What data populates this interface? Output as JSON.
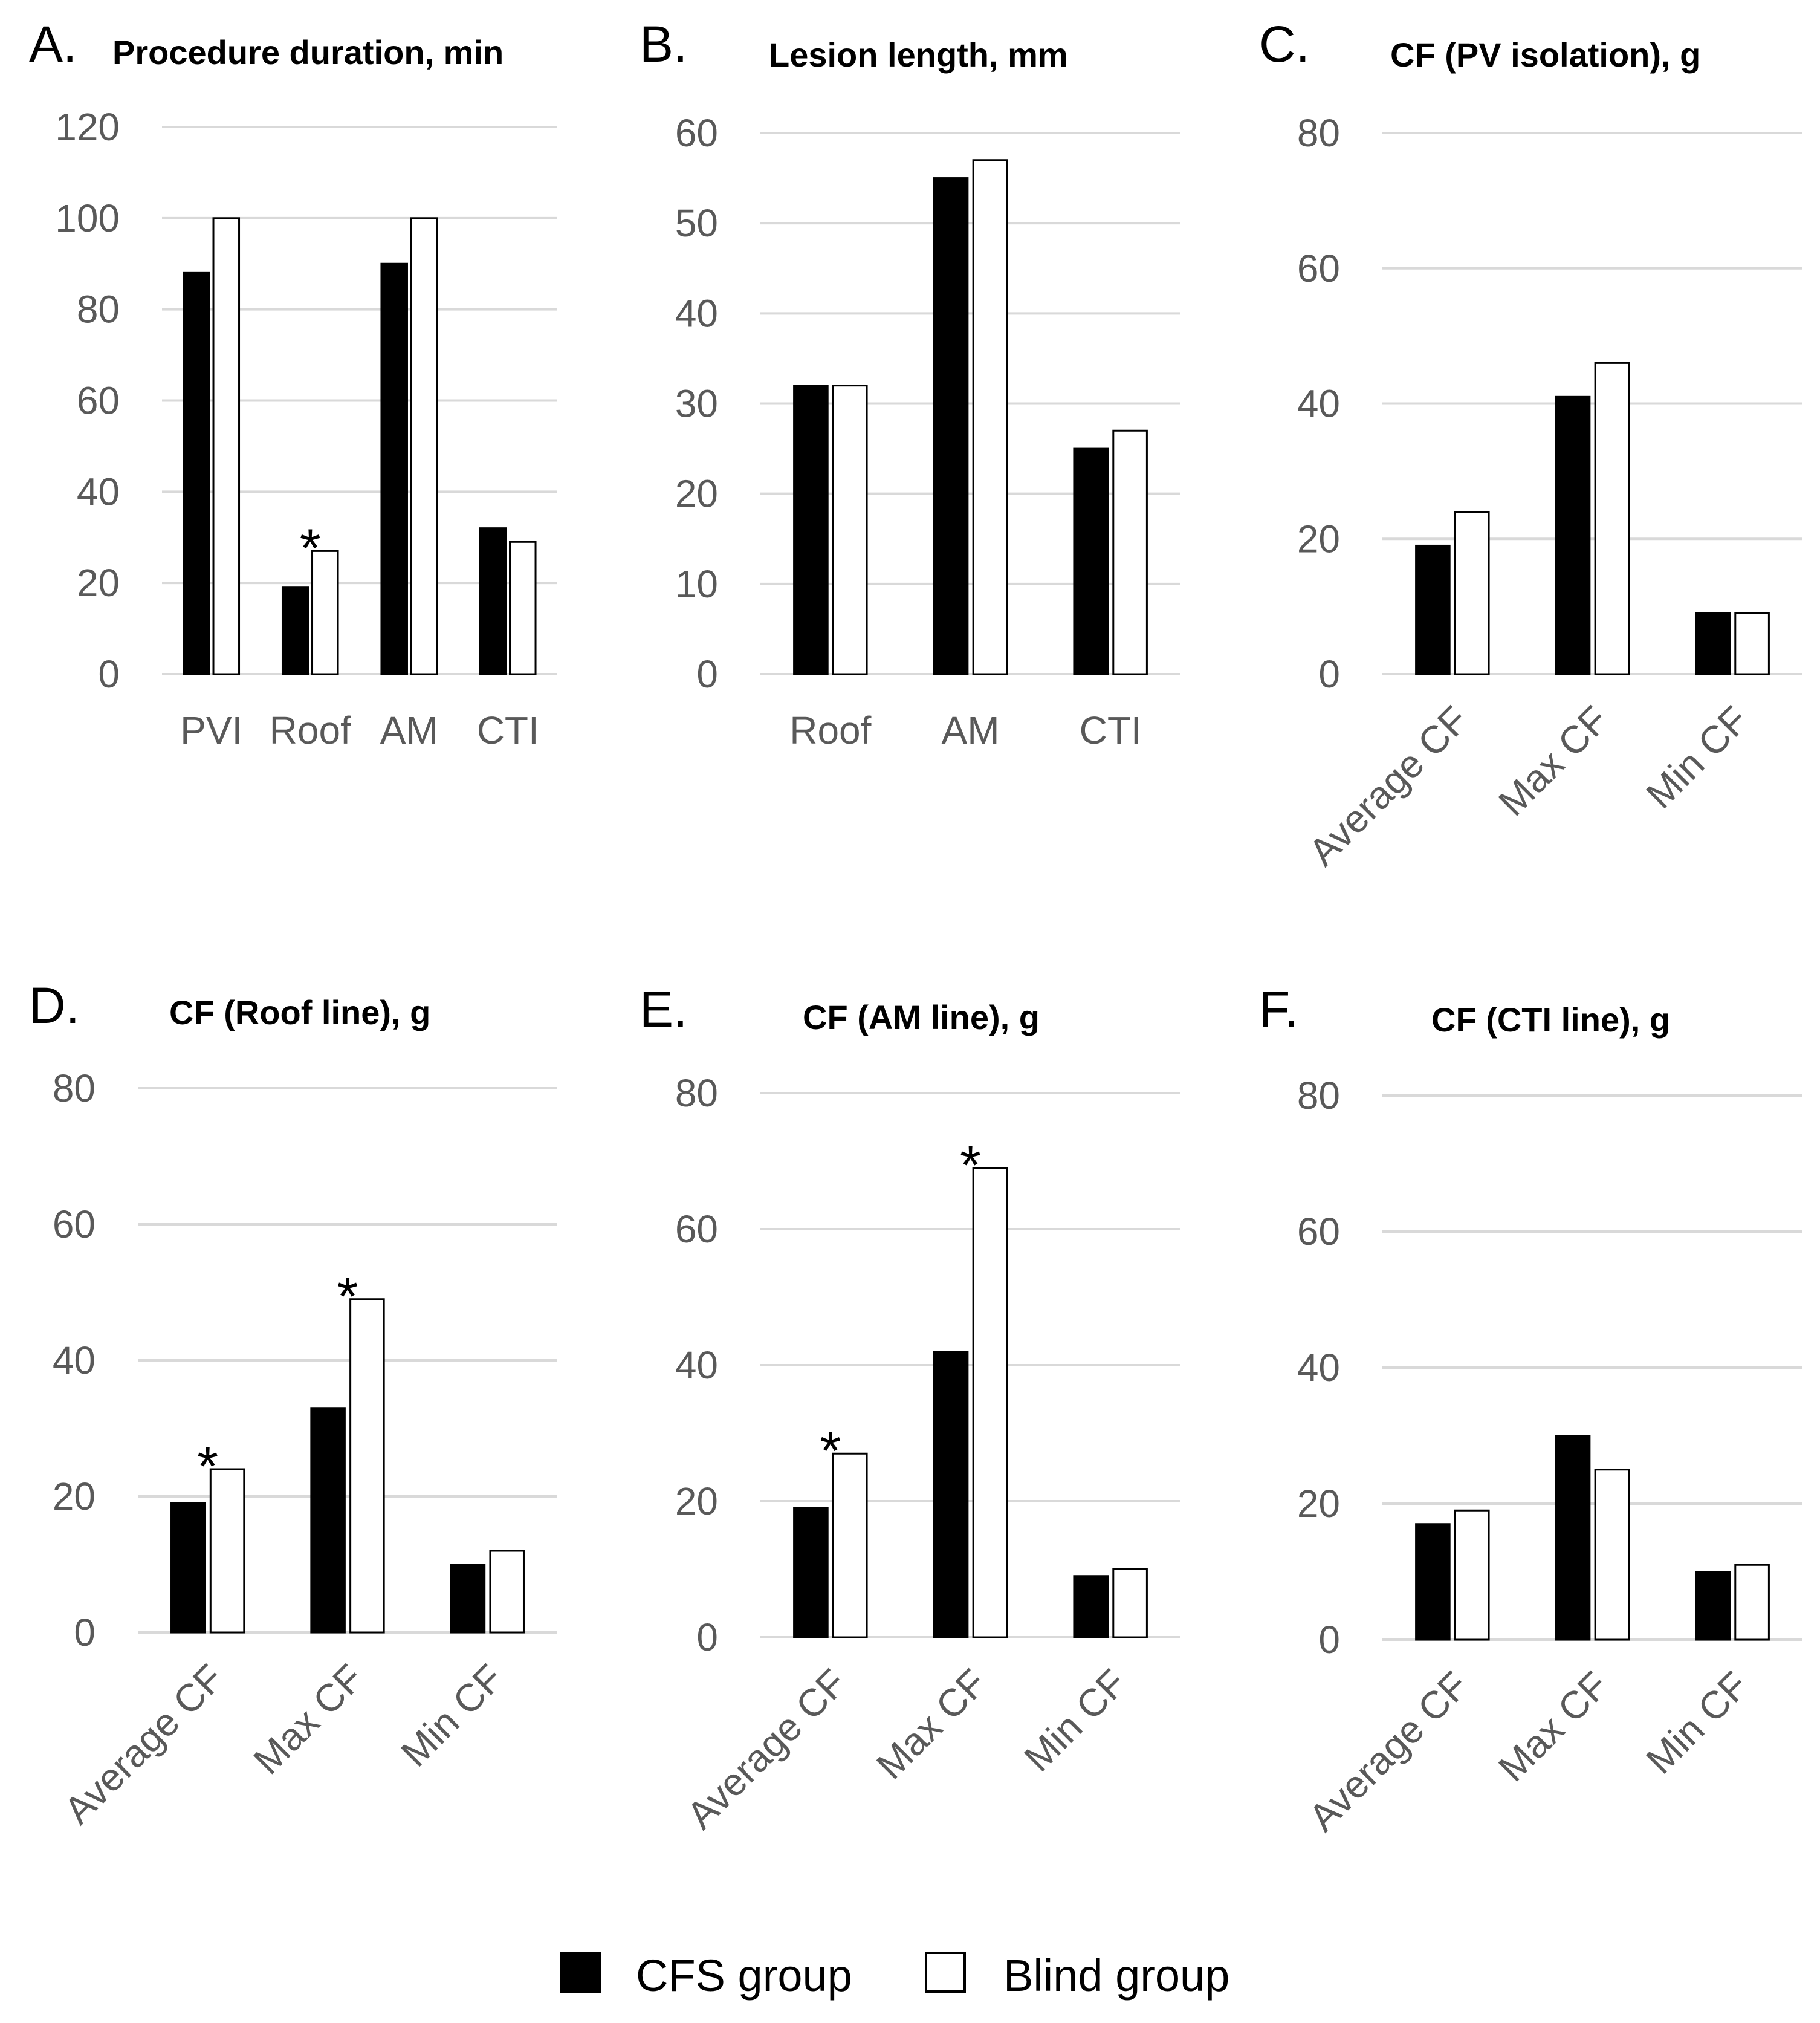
{
  "legend": [
    {
      "name": "CFS group",
      "color": "#000000"
    },
    {
      "name": "Blind group",
      "color": "#ffffff"
    }
  ],
  "chart_data": [
    {
      "type": "bar",
      "letter": "A.",
      "title": "Procedure duration, min",
      "categories": [
        "PVI",
        "Roof",
        "AM",
        "CTI"
      ],
      "series": [
        {
          "name": "CFS group",
          "values": [
            88,
            19,
            90,
            32
          ]
        },
        {
          "name": "Blind group",
          "values": [
            100,
            27,
            100,
            29
          ]
        }
      ],
      "ylim": [
        0,
        120
      ],
      "yticks": [
        0,
        20,
        40,
        60,
        80,
        100,
        120
      ],
      "significant": [
        1
      ],
      "rotate_labels": false
    },
    {
      "type": "bar",
      "letter": "B.",
      "title": "Lesion length, mm",
      "categories": [
        "Roof",
        "AM",
        "CTI"
      ],
      "series": [
        {
          "name": "CFS group",
          "values": [
            32,
            55,
            25
          ]
        },
        {
          "name": "Blind group",
          "values": [
            32,
            57,
            27
          ]
        }
      ],
      "ylim": [
        0,
        60
      ],
      "yticks": [
        0,
        10,
        20,
        30,
        40,
        50,
        60
      ],
      "significant": [],
      "rotate_labels": false
    },
    {
      "type": "bar",
      "letter": "C.",
      "title": "CF (PV isolation), g",
      "categories": [
        "Average CF",
        "Max CF",
        "Min CF"
      ],
      "series": [
        {
          "name": "CFS group",
          "values": [
            19,
            41,
            9
          ]
        },
        {
          "name": "Blind group",
          "values": [
            24,
            46,
            9
          ]
        }
      ],
      "ylim": [
        0,
        80
      ],
      "yticks": [
        0,
        20,
        40,
        60,
        80
      ],
      "significant": [],
      "rotate_labels": true
    },
    {
      "type": "bar",
      "letter": "D.",
      "title": "CF (Roof line), g",
      "categories": [
        "Average CF",
        "Max CF",
        "Min CF"
      ],
      "series": [
        {
          "name": "CFS group",
          "values": [
            19,
            33,
            10
          ]
        },
        {
          "name": "Blind group",
          "values": [
            24,
            49,
            12
          ]
        }
      ],
      "ylim": [
        0,
        80
      ],
      "yticks": [
        0,
        20,
        40,
        60,
        80
      ],
      "significant": [
        0,
        1
      ],
      "rotate_labels": true
    },
    {
      "type": "bar",
      "letter": "E.",
      "title": "CF (AM line), g",
      "categories": [
        "Average CF",
        "Max CF",
        "Min CF"
      ],
      "series": [
        {
          "name": "CFS group",
          "values": [
            19,
            42,
            9
          ]
        },
        {
          "name": "Blind group",
          "values": [
            27,
            69,
            10
          ]
        }
      ],
      "ylim": [
        0,
        80
      ],
      "yticks": [
        0,
        20,
        40,
        60,
        80
      ],
      "significant": [
        0,
        1
      ],
      "rotate_labels": true
    },
    {
      "type": "bar",
      "letter": "F.",
      "title": "CF (CTI line), g",
      "categories": [
        "Average CF",
        "Max CF",
        "Min CF"
      ],
      "series": [
        {
          "name": "CFS group",
          "values": [
            17,
            30,
            10
          ]
        },
        {
          "name": "Blind group",
          "values": [
            19,
            25,
            11
          ]
        }
      ],
      "ylim": [
        0,
        80
      ],
      "yticks": [
        0,
        20,
        40,
        60,
        80
      ],
      "significant": [],
      "rotate_labels": true
    }
  ]
}
